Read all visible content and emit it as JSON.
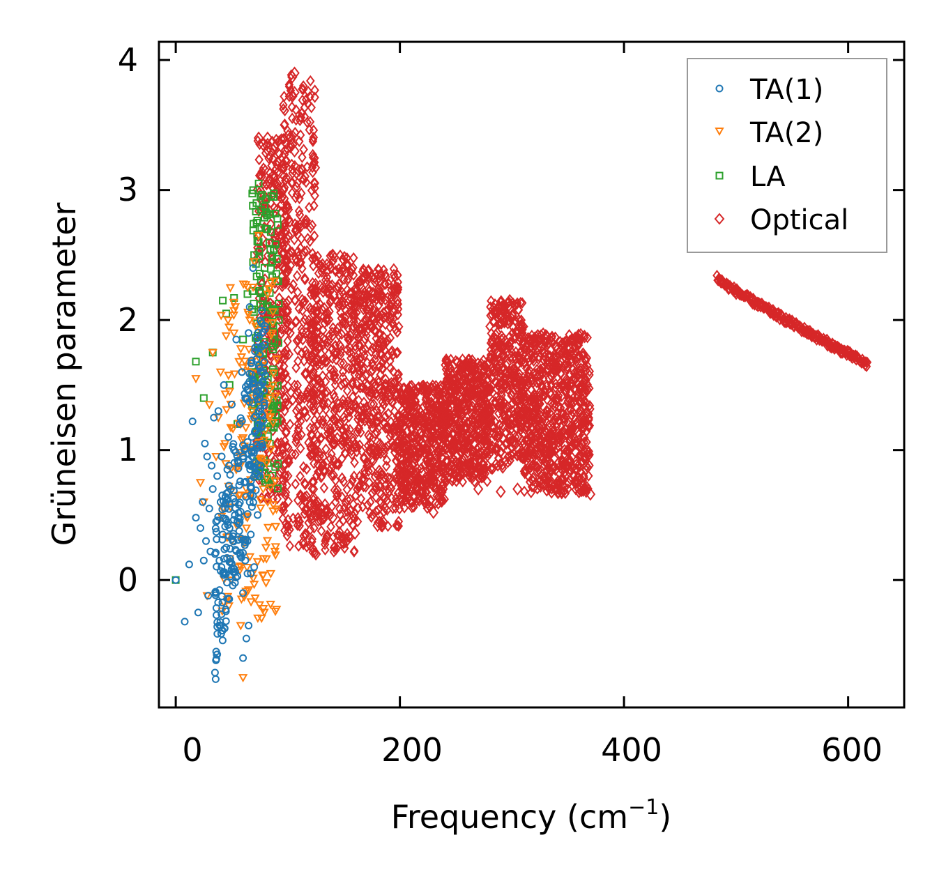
{
  "chart_data": {
    "type": "scatter",
    "title": "",
    "xlabel": "Frequency (cm",
    "xlabel_sup": "−1",
    "xlabel_close": ")",
    "ylabel": "Grüneisen parameter",
    "xlim": [
      -15,
      650
    ],
    "ylim": [
      -0.98,
      4.14
    ],
    "xticks": [
      0,
      200,
      400,
      600
    ],
    "yticks": [
      0,
      1,
      2,
      3,
      4
    ],
    "xtick_labels": [
      "0",
      "200",
      "400",
      "600"
    ],
    "ytick_labels": [
      "0",
      "1",
      "2",
      "3",
      "4"
    ],
    "grid": false,
    "legend_position": "top-right",
    "series": [
      {
        "name": "TA(1)",
        "marker": "circle",
        "color": "#1f77b4",
        "filled": false,
        "points": [
          [
            0,
            0
          ],
          [
            8,
            -0.32
          ],
          [
            12,
            0.12
          ],
          [
            15,
            1.22
          ],
          [
            18,
            0.48
          ],
          [
            20,
            -0.25
          ],
          [
            22,
            0.4
          ],
          [
            24,
            0.6
          ],
          [
            25,
            0.15
          ],
          [
            26,
            1.05
          ],
          [
            27,
            0.3
          ],
          [
            28,
            0.95
          ],
          [
            29,
            -0.12
          ],
          [
            30,
            0.55
          ],
          [
            31,
            0.22
          ],
          [
            32,
            0.88
          ],
          [
            33,
            0.7
          ],
          [
            34,
            1.25
          ],
          [
            35,
            0.2
          ],
          [
            36,
            0.45
          ],
          [
            37,
            0.8
          ],
          [
            38,
            1.3
          ],
          [
            39,
            0.15
          ],
          [
            40,
            0.6
          ],
          [
            41,
            0.95
          ],
          [
            42,
            0.35
          ],
          [
            43,
            1.5
          ],
          [
            44,
            0.55
          ],
          [
            45,
            0.25
          ],
          [
            46,
            0.85
          ],
          [
            47,
            1.1
          ],
          [
            48,
            0.4
          ],
          [
            49,
            0.7
          ],
          [
            50,
            1.35
          ],
          [
            51,
            0.3
          ],
          [
            52,
            1.0
          ],
          [
            53,
            0.6
          ],
          [
            54,
            1.85
          ],
          [
            55,
            0.45
          ],
          [
            56,
            0.9
          ],
          [
            57,
            1.2
          ],
          [
            58,
            0.2
          ],
          [
            59,
            1.6
          ],
          [
            60,
            -0.6
          ],
          [
            61,
            0.75
          ],
          [
            62,
            1.4
          ],
          [
            63,
            -0.45
          ],
          [
            64,
            0.05
          ],
          [
            65,
            1.9
          ],
          [
            66,
            2.1
          ],
          [
            67,
            0.35
          ],
          [
            68,
            1.1
          ],
          [
            69,
            2.4
          ],
          [
            70,
            0.1
          ],
          [
            71,
            0.9
          ],
          [
            72,
            1.7
          ],
          [
            73,
            0.5
          ],
          [
            74,
            1.3
          ],
          [
            75,
            0.8
          ],
          [
            76,
            1.5
          ],
          [
            77,
            1.05
          ],
          [
            78,
            1.6
          ],
          [
            60,
            -0.1
          ],
          [
            62,
            0.15
          ],
          [
            64,
            0.3
          ],
          [
            66,
            0.6
          ],
          [
            68,
            0.95
          ],
          [
            70,
            1.25
          ],
          [
            72,
            1.45
          ],
          [
            74,
            1.65
          ],
          [
            65,
            -0.35
          ],
          [
            67,
            0.05
          ],
          [
            69,
            0.65
          ],
          [
            71,
            1.15
          ]
        ]
      },
      {
        "name": "TA(2)",
        "marker": "triangle-down",
        "color": "#ff7f0e",
        "filled": false,
        "points": [
          [
            18,
            1.55
          ],
          [
            22,
            0.75
          ],
          [
            25,
            0.6
          ],
          [
            28,
            -0.12
          ],
          [
            30,
            1.35
          ],
          [
            33,
            1.75
          ],
          [
            36,
            0.95
          ],
          [
            38,
            1.25
          ],
          [
            40,
            1.6
          ],
          [
            42,
            0.55
          ],
          [
            44,
            1.05
          ],
          [
            46,
            -0.15
          ],
          [
            48,
            1.45
          ],
          [
            50,
            0.3
          ],
          [
            52,
            1.9
          ],
          [
            54,
            0.85
          ],
          [
            56,
            0.1
          ],
          [
            58,
            1.2
          ],
          [
            60,
            -0.75
          ],
          [
            62,
            0.65
          ],
          [
            64,
            1.6
          ],
          [
            66,
            2.0
          ],
          [
            68,
            1.3
          ],
          [
            70,
            2.45
          ],
          [
            72,
            0.9
          ],
          [
            74,
            2.65
          ],
          [
            76,
            1.75
          ],
          [
            78,
            0.7
          ],
          [
            80,
            1.15
          ],
          [
            82,
            2.2
          ],
          [
            84,
            1.4
          ],
          [
            86,
            1.9
          ],
          [
            88,
            2.3
          ],
          [
            90,
            1.7
          ],
          [
            58,
            -0.35
          ],
          [
            63,
            0.4
          ],
          [
            67,
            1.0
          ],
          [
            72,
            1.5
          ],
          [
            77,
            1.95
          ],
          [
            82,
            1.05
          ]
        ]
      },
      {
        "name": "LA",
        "marker": "square",
        "color": "#2ca02c",
        "filled": false,
        "points": [
          [
            0,
            0
          ],
          [
            18,
            1.68
          ],
          [
            25,
            1.4
          ],
          [
            33,
            1.75
          ],
          [
            42,
            2.15
          ],
          [
            45,
            2.05
          ],
          [
            48,
            1.5
          ],
          [
            52,
            2.17
          ],
          [
            55,
            1.2
          ],
          [
            60,
            1.85
          ],
          [
            64,
            2.2
          ],
          [
            68,
            1.6
          ],
          [
            70,
            2.5
          ],
          [
            72,
            2.9
          ],
          [
            74,
            3.05
          ],
          [
            76,
            2.3
          ],
          [
            78,
            1.75
          ],
          [
            80,
            2.7
          ],
          [
            82,
            2.1
          ],
          [
            84,
            1.45
          ],
          [
            86,
            2.45
          ],
          [
            88,
            1.9
          ],
          [
            90,
            2.3
          ],
          [
            92,
            2.0
          ],
          [
            82,
            0.9
          ],
          [
            84,
            1.05
          ],
          [
            80,
            0.75
          ],
          [
            86,
            1.3
          ],
          [
            88,
            1.6
          ],
          [
            74,
            2.6
          ],
          [
            76,
            2.85
          ],
          [
            78,
            2.1
          ]
        ]
      },
      {
        "name": "Optical",
        "marker": "diamond",
        "color": "#d62728",
        "filled": false,
        "bands": [
          {
            "x0": 72,
            "x1": 100,
            "ylow": 0.6,
            "yhigh": 3.4
          },
          {
            "x0": 95,
            "x1": 125,
            "ylow": 0.25,
            "yhigh": 3.9
          },
          {
            "x0": 120,
            "x1": 160,
            "ylow": 0.2,
            "yhigh": 2.5
          },
          {
            "x0": 160,
            "x1": 200,
            "ylow": 0.4,
            "yhigh": 2.4
          },
          {
            "x0": 200,
            "x1": 240,
            "ylow": 0.55,
            "yhigh": 1.5
          },
          {
            "x0": 240,
            "x1": 280,
            "ylow": 0.75,
            "yhigh": 1.7
          },
          {
            "x0": 280,
            "x1": 310,
            "ylow": 0.85,
            "yhigh": 2.15
          },
          {
            "x0": 310,
            "x1": 370,
            "ylow": 0.65,
            "yhigh": 1.9
          }
        ],
        "points": [
          [
            104,
            3.87
          ],
          [
            106,
            3.9
          ],
          [
            104,
            3.72
          ],
          [
            106,
            3.75
          ],
          [
            74,
            3.4
          ],
          [
            78,
            3.35
          ],
          [
            82,
            3.4
          ],
          [
            104,
            3.35
          ],
          [
            106,
            3.3
          ],
          [
            110,
            3.15
          ],
          [
            100,
            2.85
          ],
          [
            108,
            2.7
          ],
          [
            125,
            2.0
          ],
          [
            140,
            2.5
          ],
          [
            172,
            2.38
          ],
          [
            298,
            2.15
          ],
          [
            310,
            1.95
          ],
          [
            330,
            1.75
          ],
          [
            345,
            1.5
          ],
          [
            362,
            1.25
          ],
          [
            362,
            1.05
          ],
          [
            350,
            1.0
          ],
          [
            330,
            0.92
          ],
          [
            345,
            0.85
          ],
          [
            360,
            0.7
          ],
          [
            370,
            0.66
          ],
          [
            320,
            0.72
          ],
          [
            305,
            0.7
          ],
          [
            290,
            0.68
          ],
          [
            270,
            0.7
          ],
          [
            250,
            0.95
          ],
          [
            230,
            0.52
          ],
          [
            200,
            0.62
          ],
          [
            180,
            0.42
          ],
          [
            160,
            0.36
          ],
          [
            140,
            0.48
          ],
          [
            125,
            0.2
          ],
          [
            95,
            0.55
          ],
          [
            88,
            0.7
          ],
          [
            110,
            0.45
          ],
          [
            320,
            1.3
          ],
          [
            340,
            1.4
          ],
          [
            300,
            1.6
          ],
          [
            310,
            1.55
          ]
        ],
        "curve": {
          "x0": 483,
          "x1": 617,
          "y0": 2.33,
          "y1": 1.66
        }
      }
    ]
  }
}
